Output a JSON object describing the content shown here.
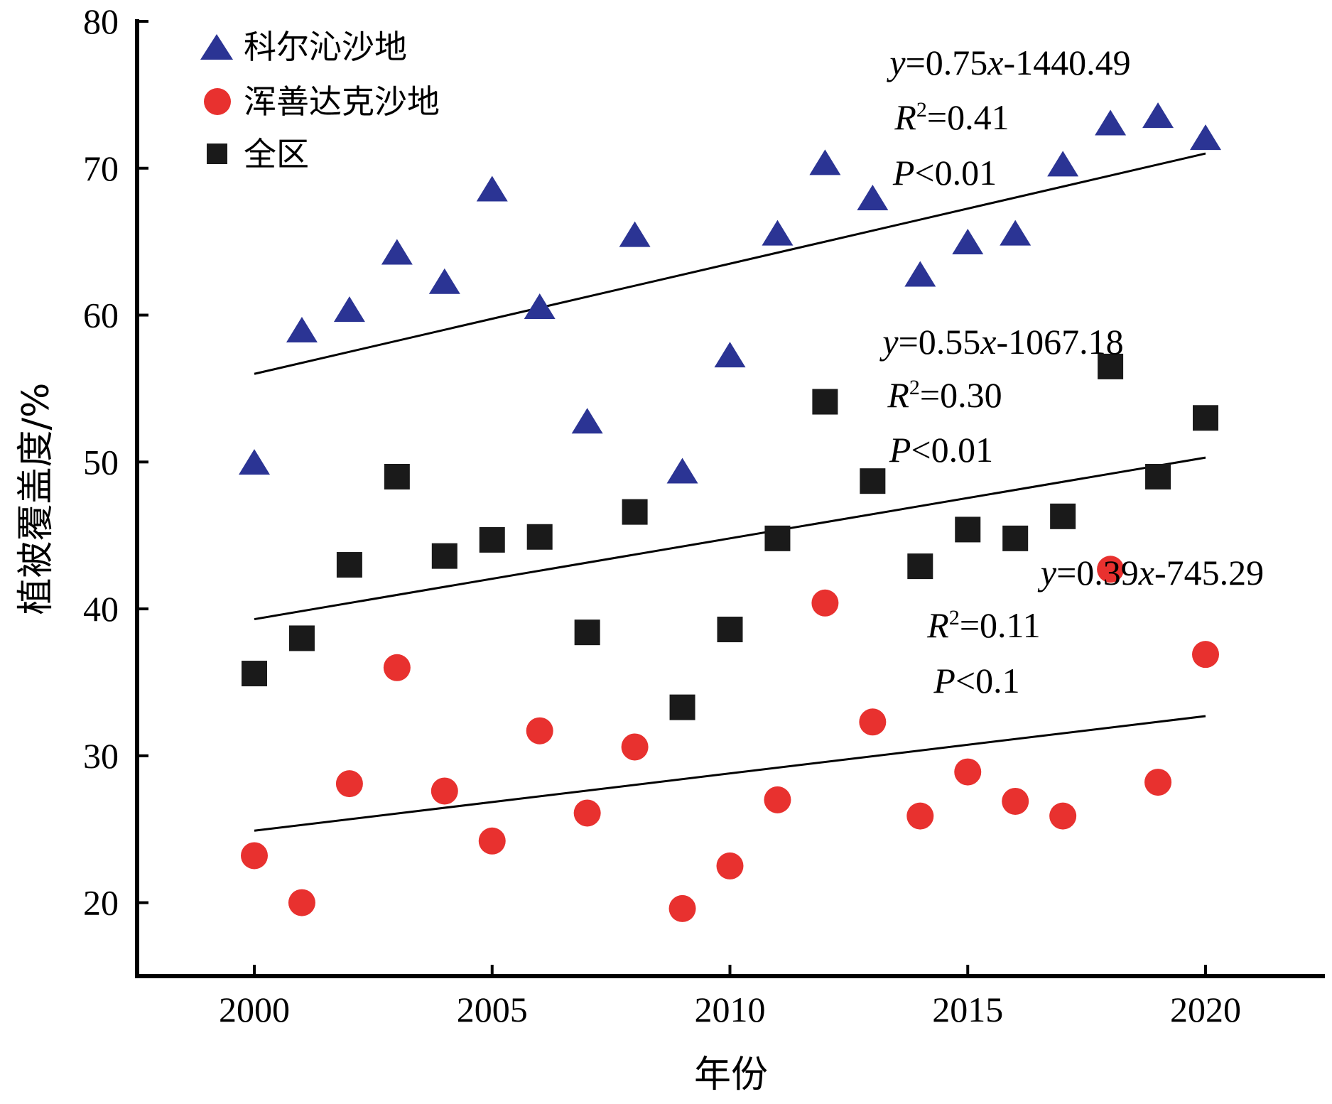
{
  "chart_data": {
    "type": "scatter",
    "title": "",
    "xlabel": "年份",
    "ylabel": "植被覆盖度/%",
    "xlim": [
      1997.5,
      2022.5
    ],
    "ylim": [
      15,
      80
    ],
    "xticks": [
      2000,
      2005,
      2010,
      2015,
      2020
    ],
    "yticks": [
      20,
      30,
      40,
      50,
      60,
      70,
      80
    ],
    "grid": false,
    "legend_position": "top-left",
    "x": [
      2000,
      2001,
      2002,
      2003,
      2004,
      2005,
      2006,
      2007,
      2008,
      2009,
      2010,
      2011,
      2012,
      2013,
      2014,
      2015,
      2016,
      2017,
      2018,
      2019,
      2020
    ],
    "series": [
      {
        "name": "科尔沁沙地",
        "marker": "triangle",
        "color": "#2b3494",
        "values": [
          49.8,
          58.8,
          60.2,
          64.1,
          62.1,
          68.4,
          60.4,
          52.6,
          65.3,
          49.2,
          57.1,
          65.4,
          70.2,
          67.8,
          62.6,
          64.8,
          65.4,
          70.1,
          72.9,
          73.4,
          71.9
        ],
        "trend": {
          "equation_main": "=0.75",
          "equation_tail": "-1440.49",
          "r2": "=0.41",
          "p": "<0.01",
          "start": [
            2000,
            56.0
          ],
          "end": [
            2020,
            71.0
          ]
        }
      },
      {
        "name": "浑善达克沙地",
        "marker": "circle",
        "color": "#e8312f",
        "values": [
          23.2,
          20.0,
          28.1,
          36.0,
          27.6,
          24.2,
          31.7,
          26.1,
          30.6,
          19.6,
          22.5,
          27.0,
          40.4,
          32.3,
          25.9,
          28.9,
          26.9,
          25.9,
          42.7,
          28.2,
          36.9
        ],
        "trend": {
          "equation_main": "=0.39",
          "equation_tail": "-745.29",
          "r2": "=0.11",
          "p": "<0.1",
          "start": [
            2000,
            24.9
          ],
          "end": [
            2020,
            32.7
          ]
        }
      },
      {
        "name": "全区",
        "marker": "square",
        "color": "#1a1a1a",
        "values": [
          35.6,
          38.0,
          43.0,
          49.0,
          43.6,
          44.7,
          44.9,
          38.4,
          46.6,
          33.3,
          38.6,
          44.8,
          54.1,
          48.7,
          42.9,
          45.4,
          44.8,
          46.3,
          56.5,
          49.0,
          53.0
        ],
        "trend": {
          "equation_main": "=0.55",
          "equation_tail": "-1067.18",
          "r2": "=0.30",
          "p": "<0.01",
          "start": [
            2000,
            39.3
          ],
          "end": [
            2020,
            50.3
          ]
        }
      }
    ]
  }
}
